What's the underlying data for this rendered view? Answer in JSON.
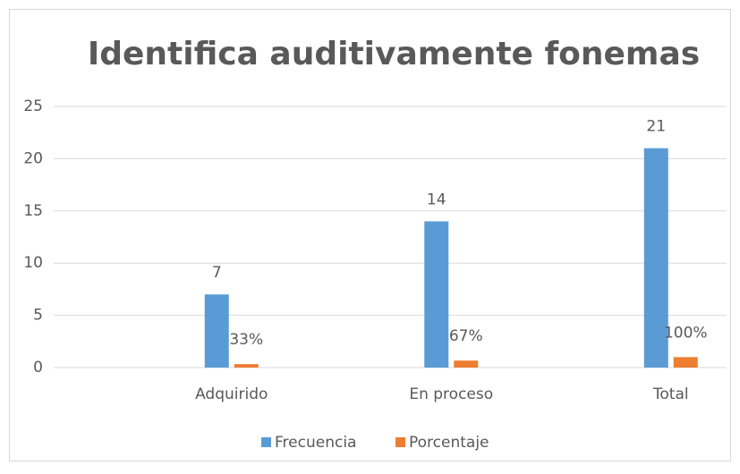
{
  "chart_data": {
    "type": "bar",
    "title": "Identifica auditivamente fonemas",
    "categories": [
      "Adquirido",
      "En proceso",
      "Total"
    ],
    "series": [
      {
        "name": "Frecuencia",
        "color": "#5b9bd5",
        "values": [
          7,
          14,
          21
        ]
      },
      {
        "name": "Porcentaje",
        "color": "#ed7d31",
        "values": [
          0.33,
          0.67,
          1
        ],
        "value_labels": [
          "33%",
          "67%",
          "100%"
        ]
      }
    ],
    "ylim": [
      0,
      25
    ],
    "yticks": [
      0,
      5,
      10,
      15,
      20,
      25
    ],
    "grid": true,
    "legend": "bottom"
  }
}
